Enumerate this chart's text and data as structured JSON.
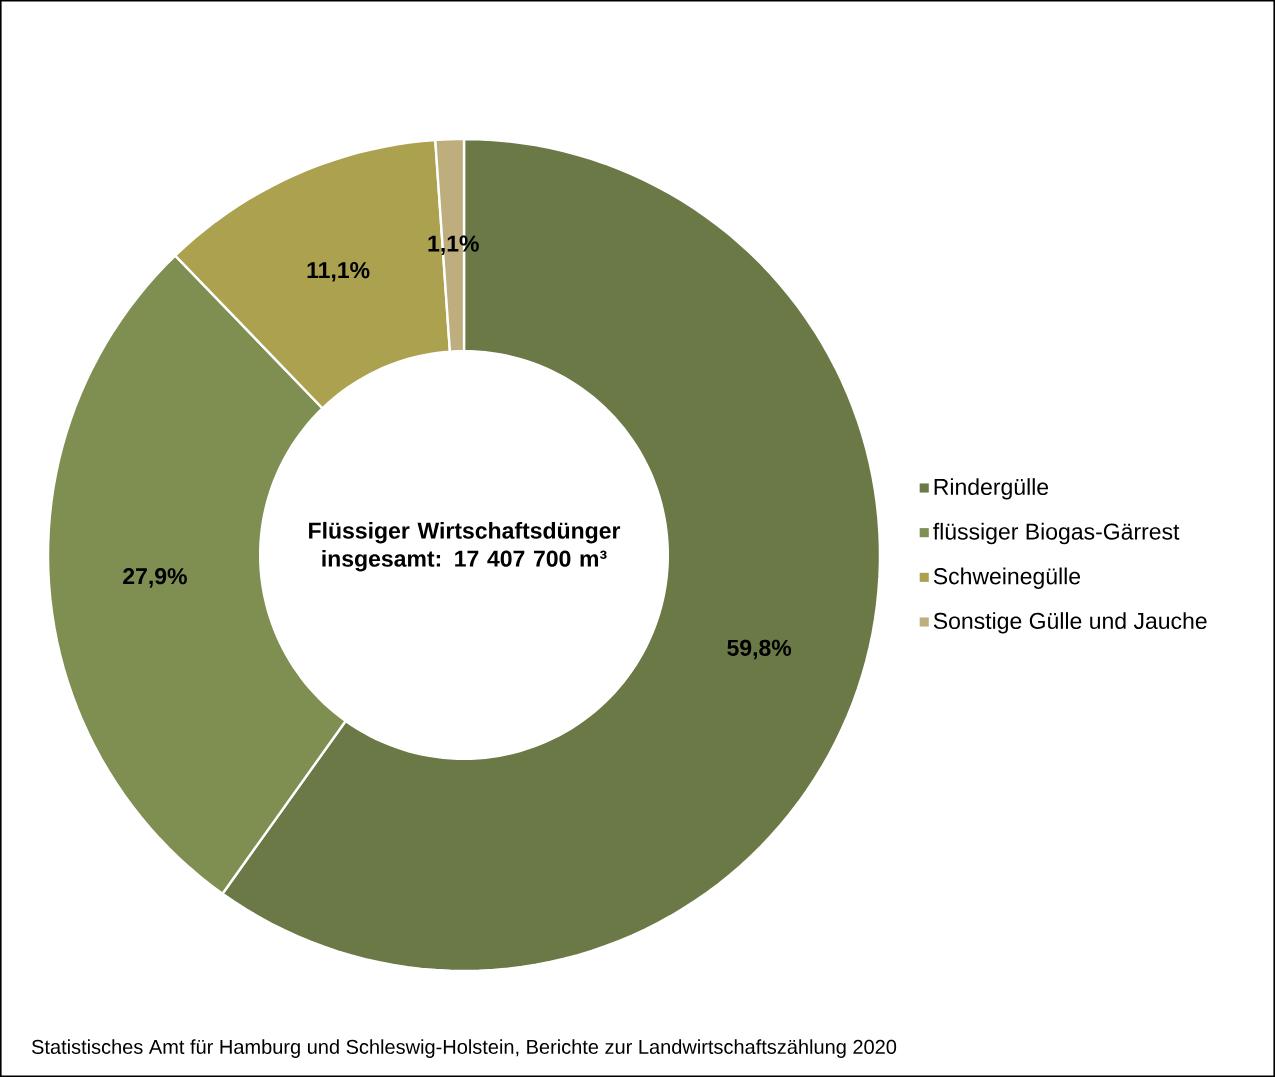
{
  "chart_data": {
    "type": "donut",
    "title": "Flüssiger Wirtschaftsdünger insgesamt: 17 407 700 m³",
    "categories": [
      "Rindergülle",
      "flüssiger Biogas-Gärrest",
      "Schweinegülle",
      "Sonstige Gülle und Jauche"
    ],
    "values": [
      59.8,
      27.9,
      11.1,
      1.1
    ],
    "value_labels": [
      "59,8%",
      "27,9%",
      "11,1%",
      "1,1%"
    ],
    "colors": [
      "#6b7946",
      "#7e8f51",
      "#aba14f",
      "#bead7d"
    ],
    "legend": "right",
    "annotations": [
      "Statistisches Amt für Hamburg und Schleswig-Holstein,  Berichte zur Landwirtschaftszählung  2020"
    ]
  }
}
